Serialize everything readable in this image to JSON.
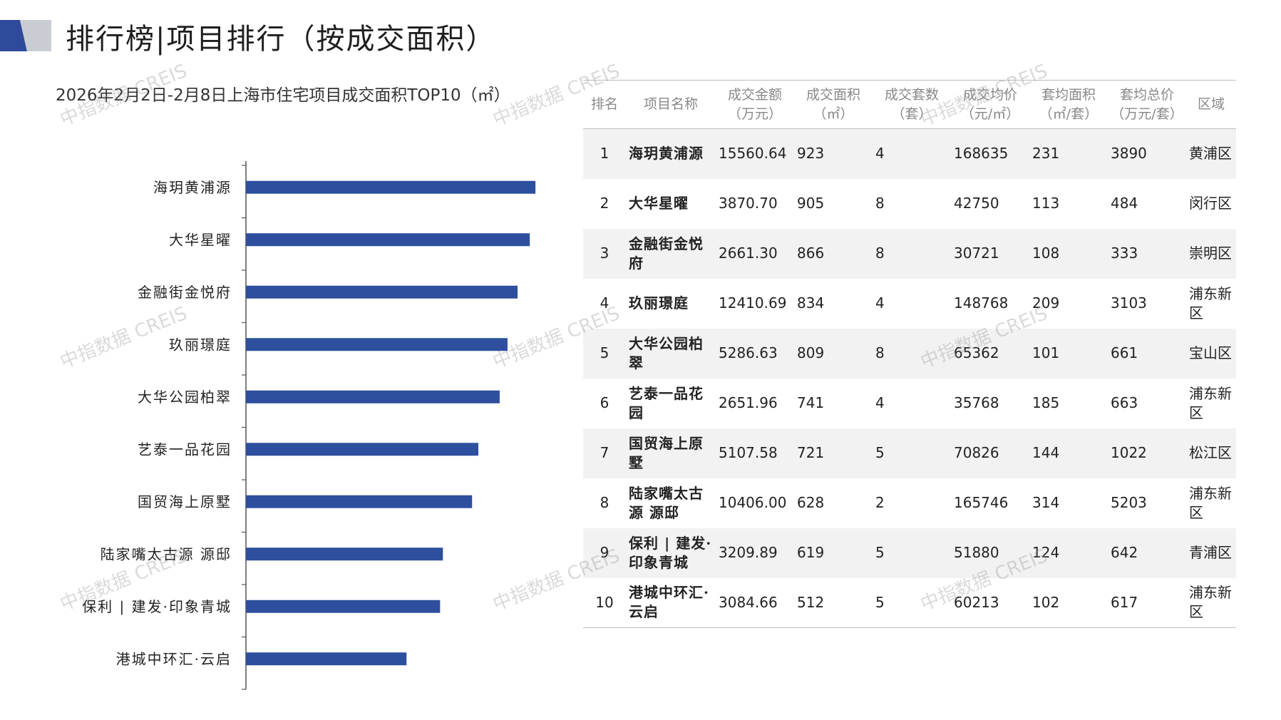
{
  "header": {
    "title": "排行榜|项目排行（按成交面积）",
    "logo_colors": [
      "#2f4a9b",
      "#c9ccd3"
    ]
  },
  "chart_data": {
    "type": "bar",
    "orientation": "horizontal",
    "title": "2026年2月2日-2月8日上海市住宅项目成交面积TOP10（㎡）",
    "categories": [
      "海玥黄浦源",
      "大华星曜",
      "金融街金悦府",
      "玖丽璟庭",
      "大华公园柏翠",
      "艺泰一品花园",
      "国贸海上原墅",
      "陆家嘴太古源 源邸",
      "保利 | 建发·印象青城",
      "港城中环汇·云启"
    ],
    "values": [
      923,
      905,
      866,
      834,
      809,
      741,
      721,
      628,
      619,
      512
    ],
    "xlim": [
      0,
      1000
    ],
    "bar_color": "#2d4f9e",
    "grid": false,
    "legend": "none"
  },
  "table": {
    "headers": [
      [
        "排名"
      ],
      [
        "项目名称"
      ],
      [
        "成交金额",
        "（万元）"
      ],
      [
        "成交面积",
        "（㎡）"
      ],
      [
        "成交套数",
        "（套）"
      ],
      [
        "成交均价",
        "（元/㎡）"
      ],
      [
        "套均面积",
        "（㎡/套）"
      ],
      [
        "套均总价",
        "（万元/套）"
      ],
      [
        "区域"
      ]
    ],
    "rows": [
      [
        "1",
        "海玥黄浦源",
        "15560.64",
        "923",
        "4",
        "168635",
        "231",
        "3890",
        "黄浦区"
      ],
      [
        "2",
        "大华星曜",
        "3870.70",
        "905",
        "8",
        "42750",
        "113",
        "484",
        "闵行区"
      ],
      [
        "3",
        "金融街金悦府",
        "2661.30",
        "866",
        "8",
        "30721",
        "108",
        "333",
        "崇明区"
      ],
      [
        "4",
        "玖丽璟庭",
        "12410.69",
        "834",
        "4",
        "148768",
        "209",
        "3103",
        "浦东新区"
      ],
      [
        "5",
        "大华公园柏翠",
        "5286.63",
        "809",
        "8",
        "65362",
        "101",
        "661",
        "宝山区"
      ],
      [
        "6",
        "艺泰一品花园",
        "2651.96",
        "741",
        "4",
        "35768",
        "185",
        "663",
        "浦东新区"
      ],
      [
        "7",
        "国贸海上原墅",
        "5107.58",
        "721",
        "5",
        "70826",
        "144",
        "1022",
        "松江区"
      ],
      [
        "8",
        "陆家嘴太古源 源邸",
        "10406.00",
        "628",
        "2",
        "165746",
        "314",
        "5203",
        "浦东新区"
      ],
      [
        "9",
        "保利 | 建发·印象青城",
        "3209.89",
        "619",
        "5",
        "51880",
        "124",
        "642",
        "青浦区"
      ],
      [
        "10",
        "港城中环汇·云启",
        "3084.66",
        "512",
        "5",
        "60213",
        "102",
        "617",
        "浦东新区"
      ]
    ]
  },
  "watermark": {
    "text": "中指数据 CREIS"
  }
}
